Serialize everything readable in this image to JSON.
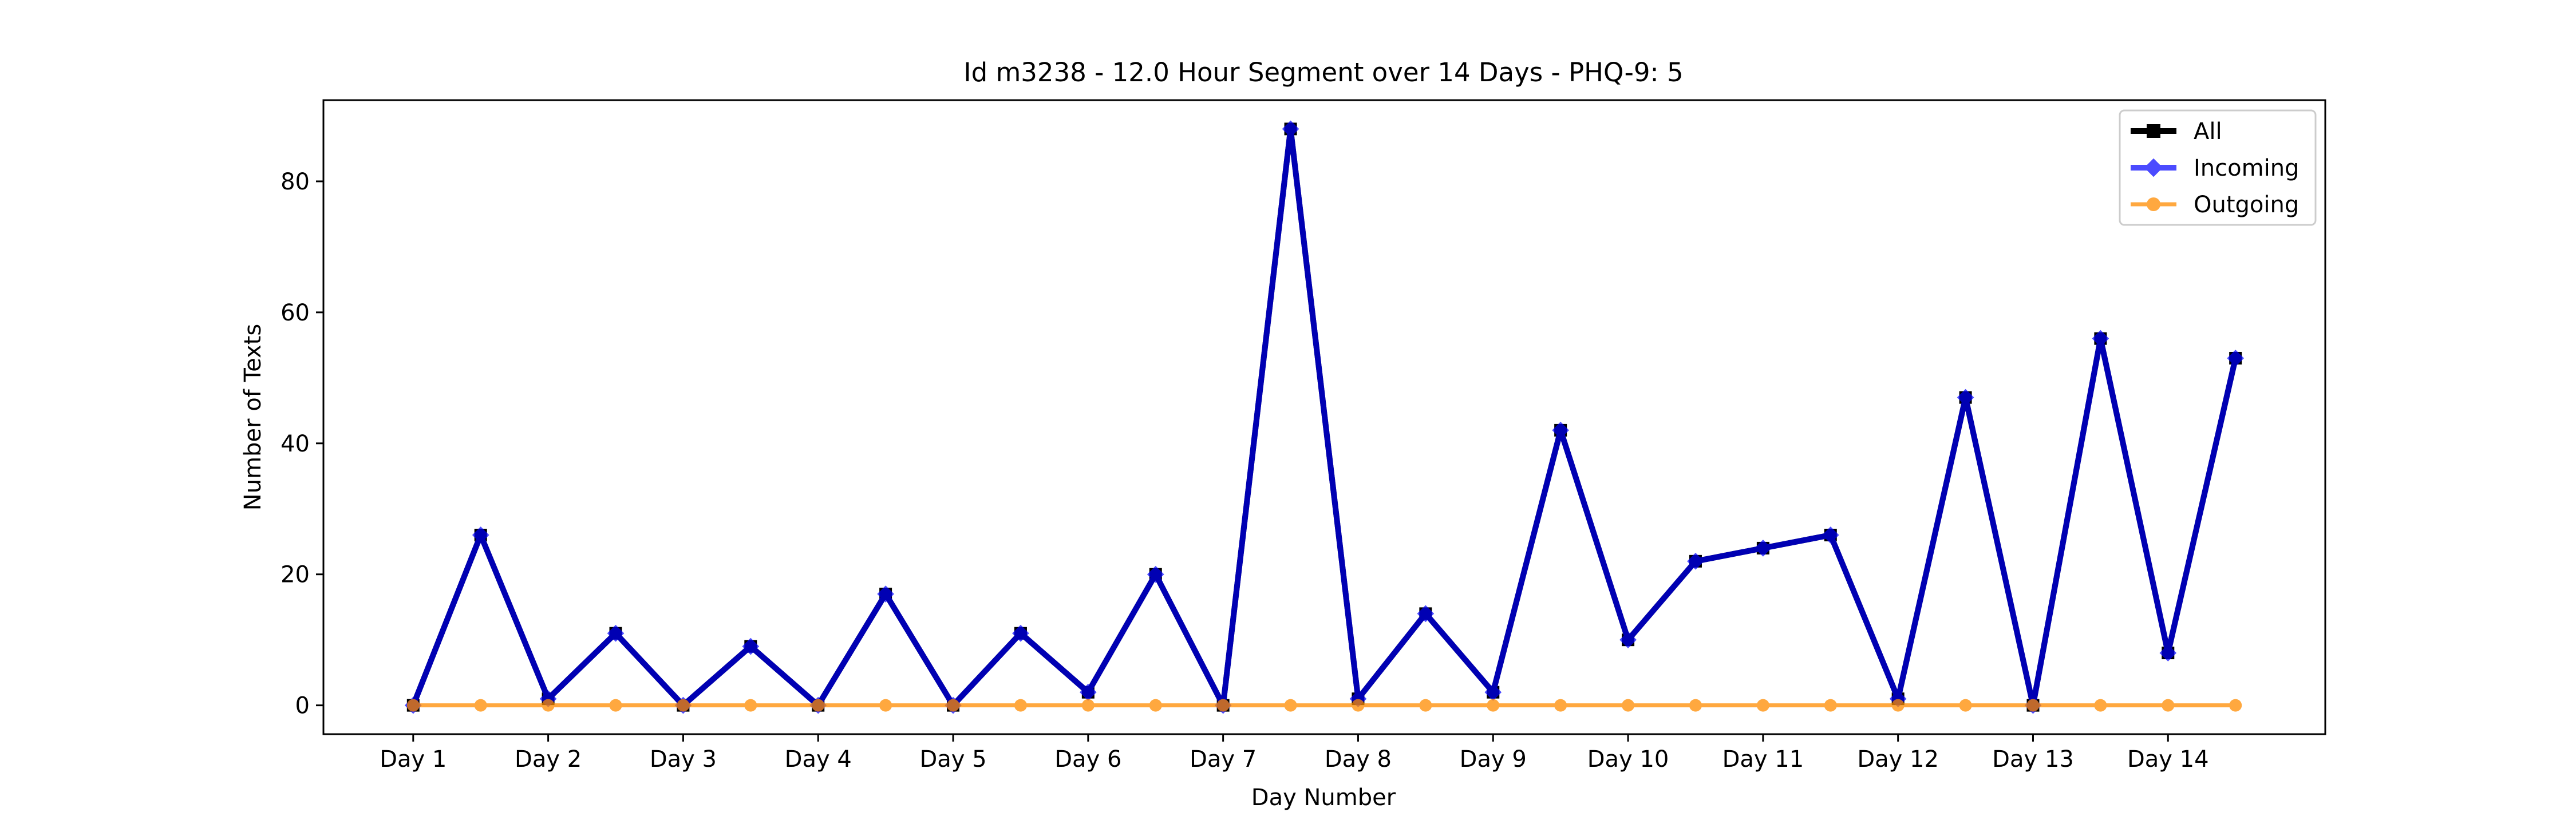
{
  "chart_data": {
    "type": "line",
    "title": "Id m3238 - 12.0 Hour Segment over 14 Days - PHQ-9: 5",
    "xlabel": "Day Number",
    "ylabel": "Number of Texts",
    "ylim": [
      -4.4,
      92.4
    ],
    "yticks": [
      0,
      20,
      40,
      60,
      80
    ],
    "categories": [
      "Day 1",
      "Day 2",
      "Day 3",
      "Day 4",
      "Day 5",
      "Day 6",
      "Day 7",
      "Day 8",
      "Day 9",
      "Day 10",
      "Day 11",
      "Day 12",
      "Day 13",
      "Day 14"
    ],
    "x": [
      1,
      1.5,
      2,
      2.5,
      3,
      3.5,
      4,
      4.5,
      5,
      5.5,
      6,
      6.5,
      7,
      7.5,
      8,
      8.5,
      9,
      9.5,
      10,
      10.5,
      11,
      11.5,
      12,
      12.5,
      13,
      13.5,
      14,
      14.5
    ],
    "xlim": [
      0.335,
      15.165
    ],
    "legend_position": "top-right",
    "grid": false,
    "series": [
      {
        "name": "All",
        "color": "#000000",
        "marker": "square",
        "values": [
          0,
          26,
          1,
          11,
          0,
          9,
          0,
          17,
          0,
          11,
          2,
          20,
          0,
          88,
          1,
          14,
          2,
          42,
          10,
          22,
          24,
          26,
          1,
          47,
          0,
          56,
          8,
          53
        ]
      },
      {
        "name": "Incoming",
        "color": "#0000ff",
        "marker": "diamond",
        "values": [
          0,
          26,
          1,
          11,
          0,
          9,
          0,
          17,
          0,
          11,
          2,
          20,
          0,
          88,
          1,
          14,
          2,
          42,
          10,
          22,
          24,
          26,
          1,
          47,
          0,
          56,
          8,
          53
        ]
      },
      {
        "name": "Outgoing",
        "color": "#ff8c00",
        "marker": "circle",
        "values": [
          0,
          0,
          0,
          0,
          0,
          0,
          0,
          0,
          0,
          0,
          0,
          0,
          0,
          0,
          0,
          0,
          0,
          0,
          0,
          0,
          0,
          0,
          0,
          0,
          0,
          0,
          0,
          0
        ]
      }
    ]
  }
}
